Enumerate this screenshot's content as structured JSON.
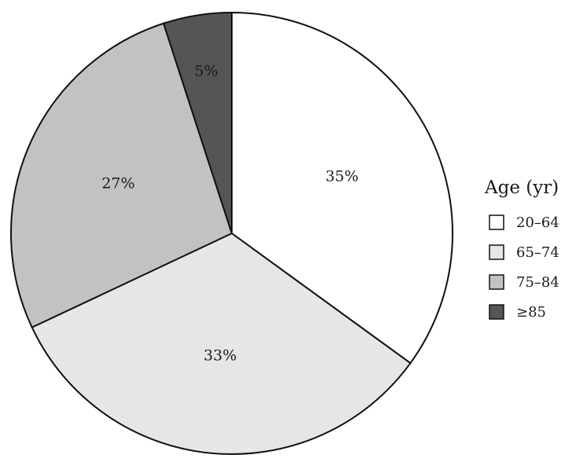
{
  "chart_data": {
    "type": "pie",
    "legend_title": "Age (yr)",
    "legend_position": "right",
    "slices": [
      {
        "label": "20–64",
        "value": 35,
        "value_label": "35%",
        "color": "#ffffff",
        "label_color": "#1a1a1a"
      },
      {
        "label": "65–74",
        "value": 33,
        "value_label": "33%",
        "color": "#e6e6e6",
        "label_color": "#1a1a1a"
      },
      {
        "label": "75–84",
        "value": 27,
        "value_label": "27%",
        "color": "#c2c2c2",
        "label_color": "#1a1a1a"
      },
      {
        "label": "≥85",
        "value": 5,
        "value_label": "5%",
        "color": "#555555",
        "label_color": "#ffffff"
      }
    ],
    "start": "12 o'clock",
    "direction": "clockwise"
  }
}
